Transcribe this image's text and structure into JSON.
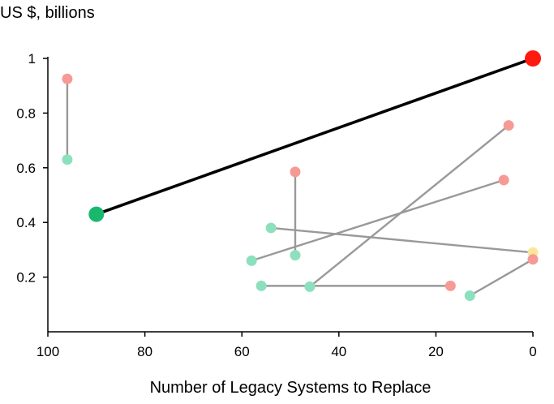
{
  "chart_data": {
    "type": "scatter",
    "title": "",
    "xlabel": "Number of Legacy Systems to Replace",
    "ylabel": "US $, billions",
    "xlim": [
      100,
      0
    ],
    "ylim": [
      0,
      1.0
    ],
    "x_reversed": true,
    "xticks": [
      100,
      80,
      60,
      40,
      20,
      0
    ],
    "xtick_labels": [
      "100",
      "80",
      "60",
      "40",
      "20",
      "0"
    ],
    "yticks": [
      0.2,
      0.4,
      0.6,
      0.8,
      1
    ],
    "ytick_labels": [
      "0.2",
      "0.4",
      "0.6",
      "0.8",
      "1"
    ],
    "grid": false,
    "colors": {
      "start": "#8de0be",
      "end": "#f79a96",
      "neutral": "#f9e79a",
      "connector": "#999999",
      "highlight_line": "#000000",
      "highlight_start": "#19b86c",
      "highlight_end": "#ff1a10"
    },
    "highlight": {
      "start": {
        "x": 90,
        "y": 0.43
      },
      "end": {
        "x": 0,
        "y": 1.0
      }
    },
    "pairs": [
      {
        "start": {
          "x": 96,
          "y": 0.63
        },
        "end": {
          "x": 96,
          "y": 0.925
        }
      },
      {
        "start": {
          "x": 49,
          "y": 0.28
        },
        "end": {
          "x": 49,
          "y": 0.585
        }
      },
      {
        "start": {
          "x": 46,
          "y": 0.165
        },
        "end": {
          "x": 5,
          "y": 0.755
        }
      },
      {
        "start": {
          "x": 58,
          "y": 0.26
        },
        "end": {
          "x": 6,
          "y": 0.555
        }
      },
      {
        "start": {
          "x": 56,
          "y": 0.168
        },
        "end": {
          "x": 17,
          "y": 0.168
        }
      },
      {
        "start": {
          "x": 54,
          "y": 0.38
        },
        "end": {
          "x": 0,
          "y": 0.29
        },
        "end_color": "neutral"
      },
      {
        "start": {
          "x": 13,
          "y": 0.132
        },
        "end": {
          "x": 0,
          "y": 0.265
        }
      }
    ]
  }
}
